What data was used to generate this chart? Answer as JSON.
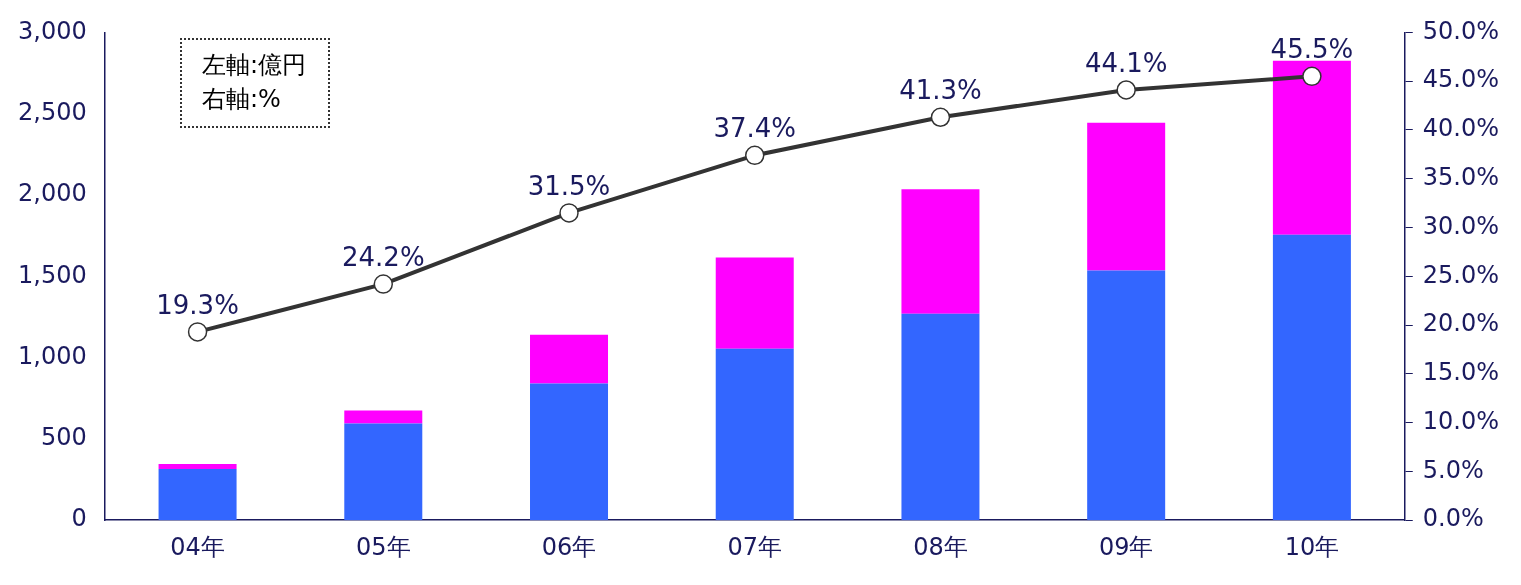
{
  "chart_data": {
    "type": "bar",
    "stacked": true,
    "categories": [
      "04年",
      "05年",
      "06年",
      "07年",
      "08年",
      "09年",
      "10年"
    ],
    "series": [
      {
        "color": "#3366ff",
        "values": [
          315,
          595,
          840,
          1055,
          1270,
          1535,
          1755
        ]
      },
      {
        "color": "#ff00ff",
        "values": [
          30,
          80,
          300,
          560,
          765,
          910,
          1070
        ]
      },
      {
        "type": "line",
        "axis": "y2",
        "color": "#333333",
        "marker": "circle",
        "values": [
          19.3,
          24.2,
          31.5,
          37.4,
          41.3,
          44.1,
          45.5
        ],
        "value_labels": [
          "19.3%",
          "24.2%",
          "31.5%",
          "37.4%",
          "41.3%",
          "44.1%",
          "45.5%"
        ]
      }
    ],
    "ylim": [
      0,
      3000
    ],
    "yticks": [
      0,
      {
        "value": 500,
        "label": "500"
      },
      {
        "value": 1000,
        "label": "1,000"
      },
      {
        "value": 1500,
        "label": "1,500"
      },
      {
        "value": 2000,
        "label": "2,000"
      },
      {
        "value": 2500,
        "label": "2,500"
      },
      {
        "value": 3000,
        "label": "3,000"
      }
    ],
    "y2lim": [
      0,
      50
    ],
    "y2ticks": [
      {
        "value": 0,
        "label": "0.0%"
      },
      {
        "value": 5,
        "label": "5.0%"
      },
      {
        "value": 10,
        "label": "10.0%"
      },
      {
        "value": 15,
        "label": "15.0%"
      },
      {
        "value": 20,
        "label": "20.0%"
      },
      {
        "value": 25,
        "label": "25.0%"
      },
      {
        "value": 30,
        "label": "30.0%"
      },
      {
        "value": 35,
        "label": "35.0%"
      },
      {
        "value": 40,
        "label": "40.0%"
      },
      {
        "value": 45,
        "label": "45.0%"
      },
      {
        "value": 50,
        "label": "50.0%"
      }
    ],
    "grid": false,
    "legend": false,
    "annotations": [
      "左軸:億円",
      "右軸:%"
    ]
  }
}
